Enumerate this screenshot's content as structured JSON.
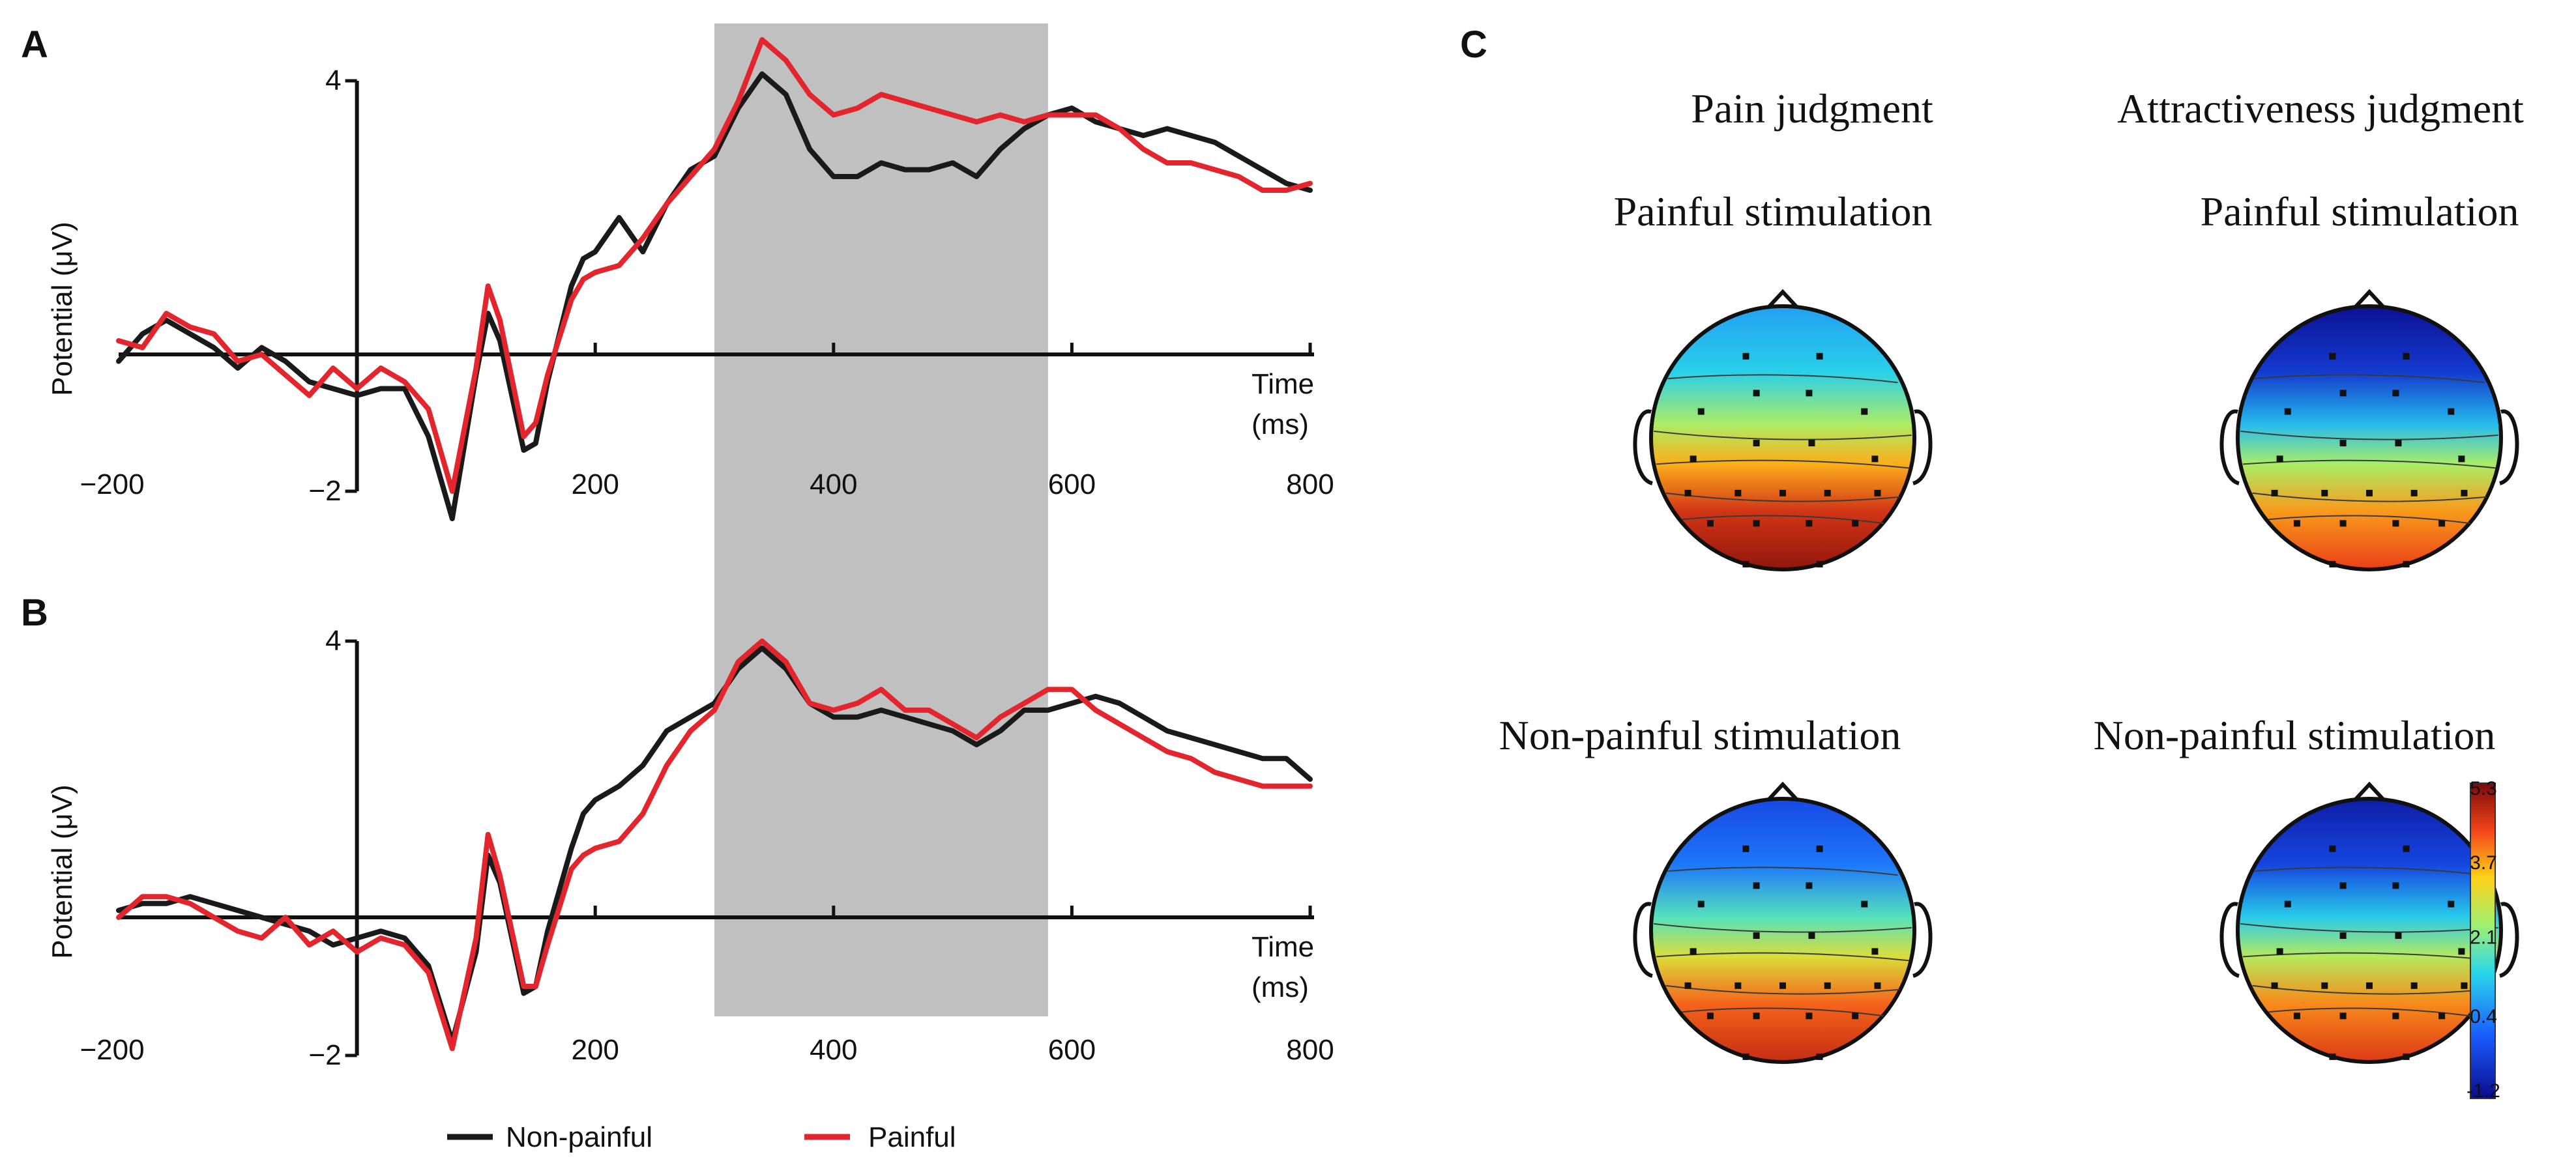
{
  "panels": {
    "a": {
      "letter": "A"
    },
    "b": {
      "letter": "B"
    },
    "c": {
      "letter": "C"
    }
  },
  "legend": {
    "non_painful": "Non-painful",
    "painful": "Painful"
  },
  "chart_data": [
    {
      "type": "line",
      "panel": "A",
      "xlabel": [
        "Time",
        "(ms)"
      ],
      "ylabel": "Potential (μV)",
      "xlim": [
        -200,
        800
      ],
      "ylim": [
        -2,
        4
      ],
      "xticks": [
        "−200",
        "200",
        "400",
        "600",
        "800"
      ],
      "yticks": [
        "4",
        "−2"
      ],
      "shaded_window": [
        300,
        580
      ],
      "series": [
        {
          "name": "Non-painful",
          "color": "#1a1a1a",
          "x": [
            -200,
            -180,
            -160,
            -140,
            -120,
            -100,
            -80,
            -60,
            -40,
            -20,
            0,
            20,
            40,
            60,
            80,
            100,
            110,
            120,
            140,
            150,
            160,
            180,
            190,
            200,
            220,
            240,
            260,
            280,
            300,
            320,
            340,
            360,
            380,
            400,
            420,
            440,
            460,
            480,
            500,
            520,
            540,
            560,
            580,
            600,
            620,
            640,
            660,
            680,
            700,
            720,
            740,
            760,
            780,
            800
          ],
          "y": [
            -0.1,
            0.3,
            0.5,
            0.3,
            0.1,
            -0.2,
            0.1,
            -0.1,
            -0.4,
            -0.5,
            -0.6,
            -0.5,
            -0.5,
            -1.2,
            -2.4,
            -0.3,
            0.6,
            0.2,
            -1.4,
            -1.3,
            -0.4,
            1.0,
            1.4,
            1.5,
            2.0,
            1.5,
            2.2,
            2.7,
            2.9,
            3.6,
            4.1,
            3.8,
            3.0,
            2.6,
            2.6,
            2.8,
            2.7,
            2.7,
            2.8,
            2.6,
            3.0,
            3.3,
            3.5,
            3.6,
            3.4,
            3.3,
            3.2,
            3.3,
            3.2,
            3.1,
            2.9,
            2.7,
            2.5,
            2.4
          ]
        },
        {
          "name": "Painful",
          "color": "#e3262d",
          "x": [
            -200,
            -180,
            -160,
            -140,
            -120,
            -100,
            -80,
            -60,
            -40,
            -20,
            0,
            20,
            40,
            60,
            80,
            100,
            110,
            120,
            140,
            150,
            160,
            180,
            190,
            200,
            220,
            240,
            260,
            280,
            300,
            320,
            340,
            360,
            380,
            400,
            420,
            440,
            460,
            480,
            500,
            520,
            540,
            560,
            580,
            600,
            620,
            640,
            660,
            680,
            700,
            720,
            740,
            760,
            780,
            800
          ],
          "y": [
            0.2,
            0.1,
            0.6,
            0.4,
            0.3,
            -0.1,
            0.0,
            -0.3,
            -0.6,
            -0.2,
            -0.5,
            -0.2,
            -0.4,
            -0.8,
            -2.0,
            -0.2,
            1.0,
            0.5,
            -1.2,
            -1.0,
            -0.3,
            0.8,
            1.1,
            1.2,
            1.3,
            1.7,
            2.2,
            2.6,
            3.0,
            3.7,
            4.6,
            4.3,
            3.8,
            3.5,
            3.6,
            3.8,
            3.7,
            3.6,
            3.5,
            3.4,
            3.5,
            3.4,
            3.5,
            3.5,
            3.5,
            3.3,
            3.0,
            2.8,
            2.8,
            2.7,
            2.6,
            2.4,
            2.4,
            2.5
          ]
        }
      ]
    },
    {
      "type": "line",
      "panel": "B",
      "xlabel": [
        "Time",
        "(ms)"
      ],
      "ylabel": "Potential (μV)",
      "xlim": [
        -200,
        800
      ],
      "ylim": [
        -2,
        4
      ],
      "xticks": [
        "−200",
        "200",
        "400",
        "600",
        "800"
      ],
      "yticks": [
        "4",
        "−2"
      ],
      "shaded_window": [
        300,
        580
      ],
      "series": [
        {
          "name": "Non-painful",
          "color": "#1a1a1a",
          "x": [
            -200,
            -180,
            -160,
            -140,
            -120,
            -100,
            -80,
            -60,
            -40,
            -20,
            0,
            20,
            40,
            60,
            80,
            100,
            110,
            120,
            140,
            150,
            160,
            180,
            190,
            200,
            220,
            240,
            260,
            280,
            300,
            320,
            340,
            360,
            380,
            400,
            420,
            440,
            460,
            480,
            500,
            520,
            540,
            560,
            580,
            600,
            620,
            640,
            660,
            680,
            700,
            720,
            740,
            760,
            780,
            800
          ],
          "y": [
            0.1,
            0.2,
            0.2,
            0.3,
            0.2,
            0.1,
            0.0,
            -0.1,
            -0.2,
            -0.4,
            -0.3,
            -0.2,
            -0.3,
            -0.7,
            -1.8,
            -0.5,
            0.9,
            0.5,
            -1.1,
            -1.0,
            -0.2,
            1.0,
            1.5,
            1.7,
            1.9,
            2.2,
            2.7,
            2.9,
            3.1,
            3.6,
            3.9,
            3.6,
            3.1,
            2.9,
            2.9,
            3.0,
            2.9,
            2.8,
            2.7,
            2.5,
            2.7,
            3.0,
            3.0,
            3.1,
            3.2,
            3.1,
            2.9,
            2.7,
            2.6,
            2.5,
            2.4,
            2.3,
            2.3,
            2.0
          ]
        },
        {
          "name": "Painful",
          "color": "#e3262d",
          "x": [
            -200,
            -180,
            -160,
            -140,
            -120,
            -100,
            -80,
            -60,
            -40,
            -20,
            0,
            20,
            40,
            60,
            80,
            100,
            110,
            120,
            140,
            150,
            160,
            180,
            190,
            200,
            220,
            240,
            260,
            280,
            300,
            320,
            340,
            360,
            380,
            400,
            420,
            440,
            460,
            480,
            500,
            520,
            540,
            560,
            580,
            600,
            620,
            640,
            660,
            680,
            700,
            720,
            740,
            760,
            780,
            800
          ],
          "y": [
            0.0,
            0.3,
            0.3,
            0.2,
            0.0,
            -0.2,
            -0.3,
            0.0,
            -0.4,
            -0.2,
            -0.5,
            -0.3,
            -0.4,
            -0.8,
            -1.9,
            -0.3,
            1.2,
            0.6,
            -1.0,
            -1.0,
            -0.4,
            0.7,
            0.9,
            1.0,
            1.1,
            1.5,
            2.2,
            2.7,
            3.0,
            3.7,
            4.0,
            3.7,
            3.1,
            3.0,
            3.1,
            3.3,
            3.0,
            3.0,
            2.8,
            2.6,
            2.9,
            3.1,
            3.3,
            3.3,
            3.0,
            2.8,
            2.6,
            2.4,
            2.3,
            2.1,
            2.0,
            1.9,
            1.9,
            1.9
          ]
        }
      ]
    },
    {
      "type": "heatmap",
      "panel": "C",
      "colorbar": {
        "ticks": [
          "5.3",
          "3.7",
          "2.1",
          "0.4",
          "-1.2"
        ],
        "range": [
          -1.2,
          5.3
        ]
      },
      "columns": [
        "Pain judgment",
        "Attractiveness judgment"
      ],
      "rows": [
        "Painful stimulation",
        "Non-painful stimulation"
      ],
      "maps": [
        {
          "column": "Pain judgment",
          "row": "Painful stimulation",
          "label": "Painful stimulation",
          "frontal_value": 0.8,
          "posterior_value": 5.1
        },
        {
          "column": "Attractiveness judgment",
          "row": "Painful stimulation",
          "label": "Painful stimulation",
          "frontal_value": -1.1,
          "posterior_value": 4.4
        },
        {
          "column": "Pain judgment",
          "row": "Non-painful stimulation",
          "label": "Non-painful stimulation",
          "frontal_value": -0.2,
          "posterior_value": 4.7
        },
        {
          "column": "Attractiveness judgment",
          "row": "Non-painful stimulation",
          "label": "Non-painful stimulation",
          "frontal_value": -0.9,
          "posterior_value": 4.5
        }
      ]
    }
  ]
}
